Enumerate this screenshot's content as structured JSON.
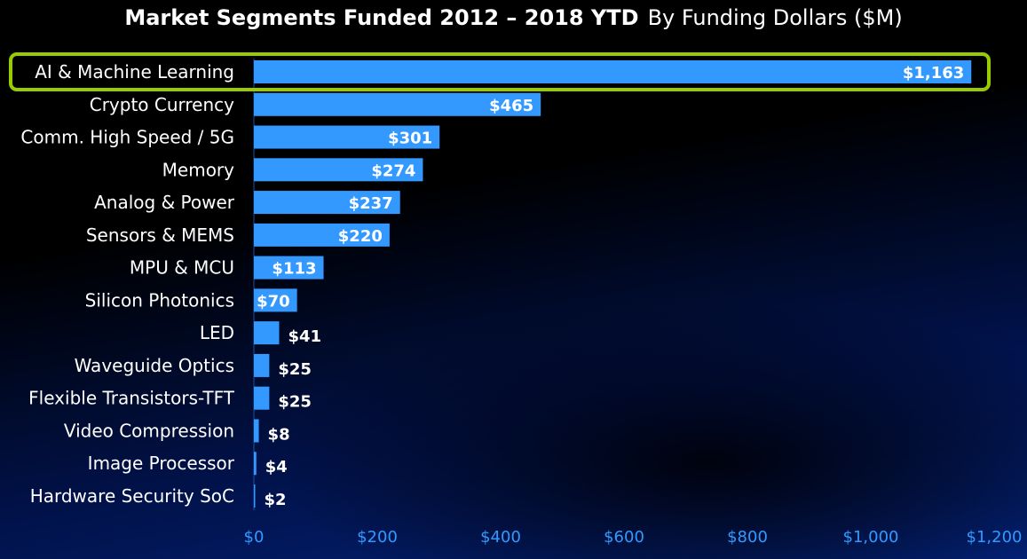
{
  "chart_data": {
    "type": "bar",
    "orientation": "horizontal",
    "title": "Market Segments Funded 2012 – 2018 YTD",
    "subtitle": "By Funding Dollars ($M)",
    "categories": [
      "AI & Machine Learning",
      "Crypto Currency",
      "Comm. High Speed / 5G",
      "Memory",
      "Analog & Power",
      "Sensors & MEMS",
      "MPU & MCU",
      "Silicon Photonics",
      "LED",
      "Waveguide Optics",
      "Flexible Transistors-TFT",
      "Video Compression",
      "Image Processor",
      "Hardware Security SoC"
    ],
    "values": [
      1163,
      465,
      301,
      274,
      237,
      220,
      113,
      70,
      41,
      25,
      25,
      8,
      4,
      2
    ],
    "data_labels": [
      "$1,163",
      "$465",
      "$301",
      "$274",
      "$237",
      "$220",
      "$113",
      "$70",
      "$41",
      "$25",
      "$25",
      "$8",
      "$4",
      "$2"
    ],
    "xlim": [
      0,
      1200
    ],
    "xticks": [
      0,
      200,
      400,
      600,
      800,
      1000,
      1200
    ],
    "xtick_labels": [
      "$0",
      "$200",
      "$400",
      "$600",
      "$800",
      "$1,000",
      "$1,200"
    ],
    "highlighted_category": "AI & Machine Learning",
    "grid": false,
    "colors": {
      "bar": "#3399ff",
      "highlight": "#99cc00",
      "tick": "#3399ff"
    }
  }
}
